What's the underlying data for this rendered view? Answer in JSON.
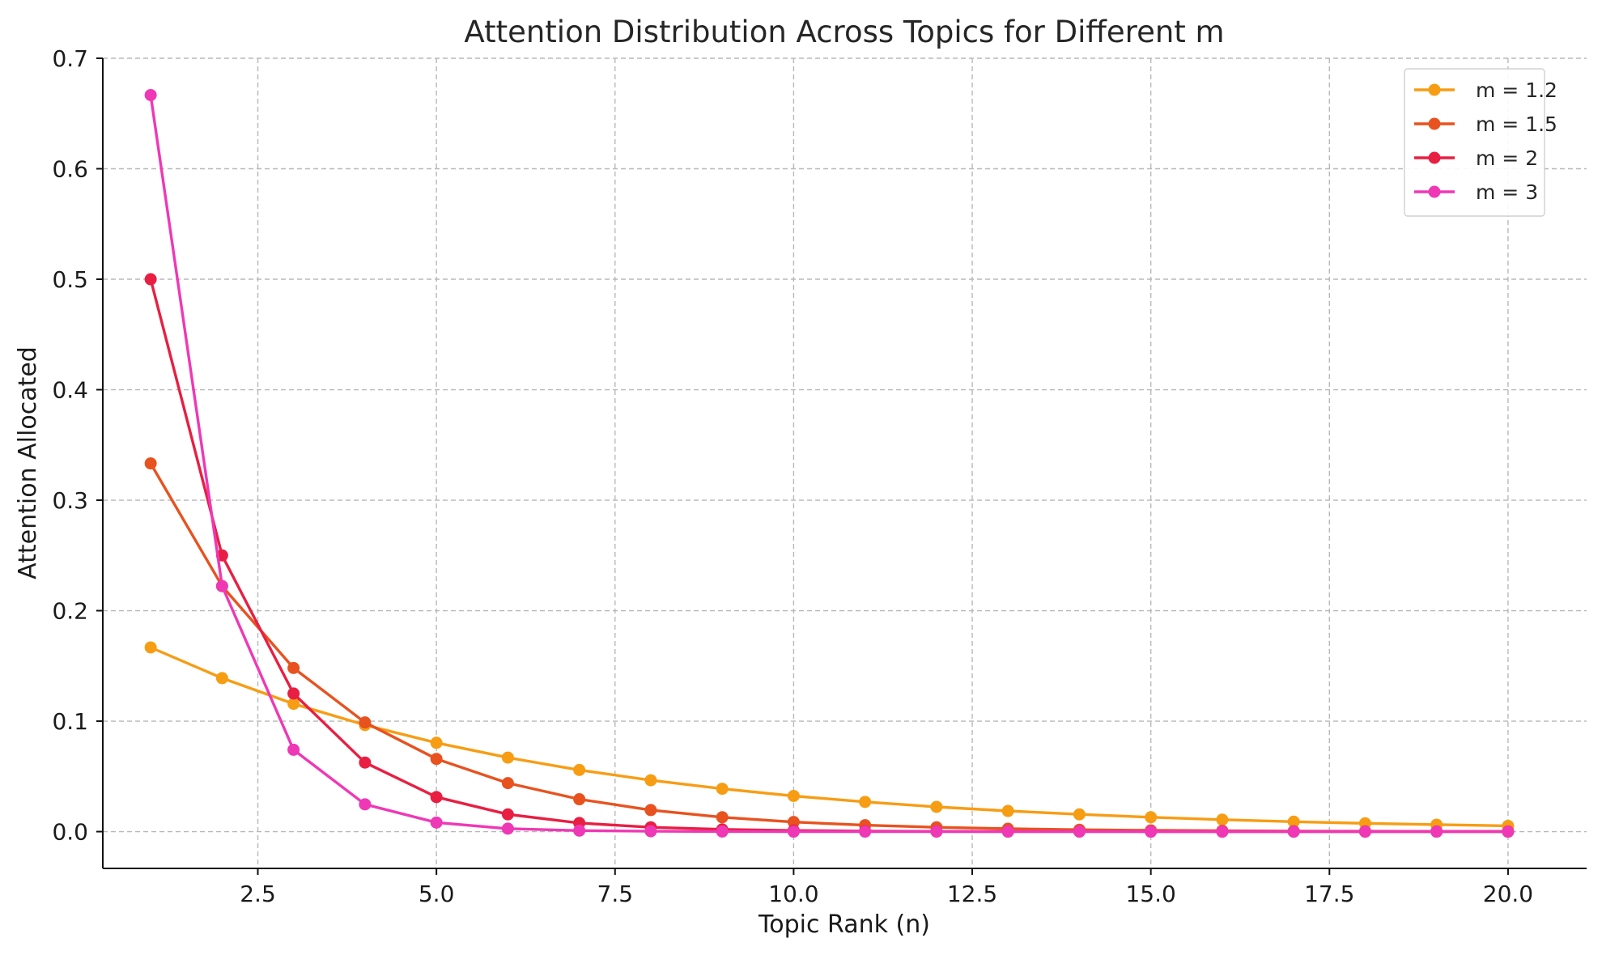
{
  "chart_data": {
    "type": "line",
    "title": "Attention Distribution Across Topics for Different m",
    "xlabel": "Topic Rank (n)",
    "ylabel": "Attention Allocated",
    "xlim": [
      0.33,
      21.1
    ],
    "ylim": [
      -0.0333,
      0.7
    ],
    "xticks": [
      2.5,
      5.0,
      7.5,
      10.0,
      12.5,
      15.0,
      17.5,
      20.0
    ],
    "xtick_labels": [
      "2.5",
      "5.0",
      "7.5",
      "10.0",
      "12.5",
      "15.0",
      "17.5",
      "20.0"
    ],
    "yticks": [
      0.0,
      0.1,
      0.2,
      0.3,
      0.4,
      0.5,
      0.6,
      0.7
    ],
    "ytick_labels": [
      "0.0",
      "0.1",
      "0.2",
      "0.3",
      "0.4",
      "0.5",
      "0.6",
      "0.7"
    ],
    "grid": true,
    "legend_position": "top-right",
    "x": [
      1,
      2,
      3,
      4,
      5,
      6,
      7,
      8,
      9,
      10,
      11,
      12,
      13,
      14,
      15,
      16,
      17,
      18,
      19,
      20
    ],
    "series": [
      {
        "name": "m = 1.2",
        "color": "#f79d14",
        "values": [
          0.1667,
          0.1389,
          0.1157,
          0.0965,
          0.0804,
          0.067,
          0.0558,
          0.0465,
          0.0388,
          0.0323,
          0.0269,
          0.0224,
          0.0187,
          0.0156,
          0.013,
          0.0108,
          0.009,
          0.0075,
          0.0063,
          0.0052
        ]
      },
      {
        "name": "m = 1.5",
        "color": "#e8521f",
        "values": [
          0.3333,
          0.2222,
          0.1481,
          0.0988,
          0.0658,
          0.0439,
          0.0293,
          0.0195,
          0.013,
          0.0087,
          0.0058,
          0.0039,
          0.0026,
          0.0017,
          0.0011,
          0.0008,
          0.0005,
          0.0003,
          0.0002,
          0.0002
        ]
      },
      {
        "name": "m = 2",
        "color": "#e81f42",
        "values": [
          0.5,
          0.25,
          0.125,
          0.0625,
          0.0313,
          0.0156,
          0.0078,
          0.0039,
          0.002,
          0.001,
          0.0005,
          0.0002,
          0.0001,
          0.0001,
          0.0,
          0.0,
          0.0,
          0.0,
          0.0,
          0.0
        ]
      },
      {
        "name": "m = 3",
        "color": "#ef38b5",
        "values": [
          0.6667,
          0.2222,
          0.0741,
          0.0247,
          0.0082,
          0.0027,
          0.0009,
          0.0003,
          0.0001,
          0.0,
          0.0,
          0.0,
          0.0,
          0.0,
          0.0,
          0.0,
          0.0,
          0.0,
          0.0,
          0.0
        ]
      }
    ]
  }
}
